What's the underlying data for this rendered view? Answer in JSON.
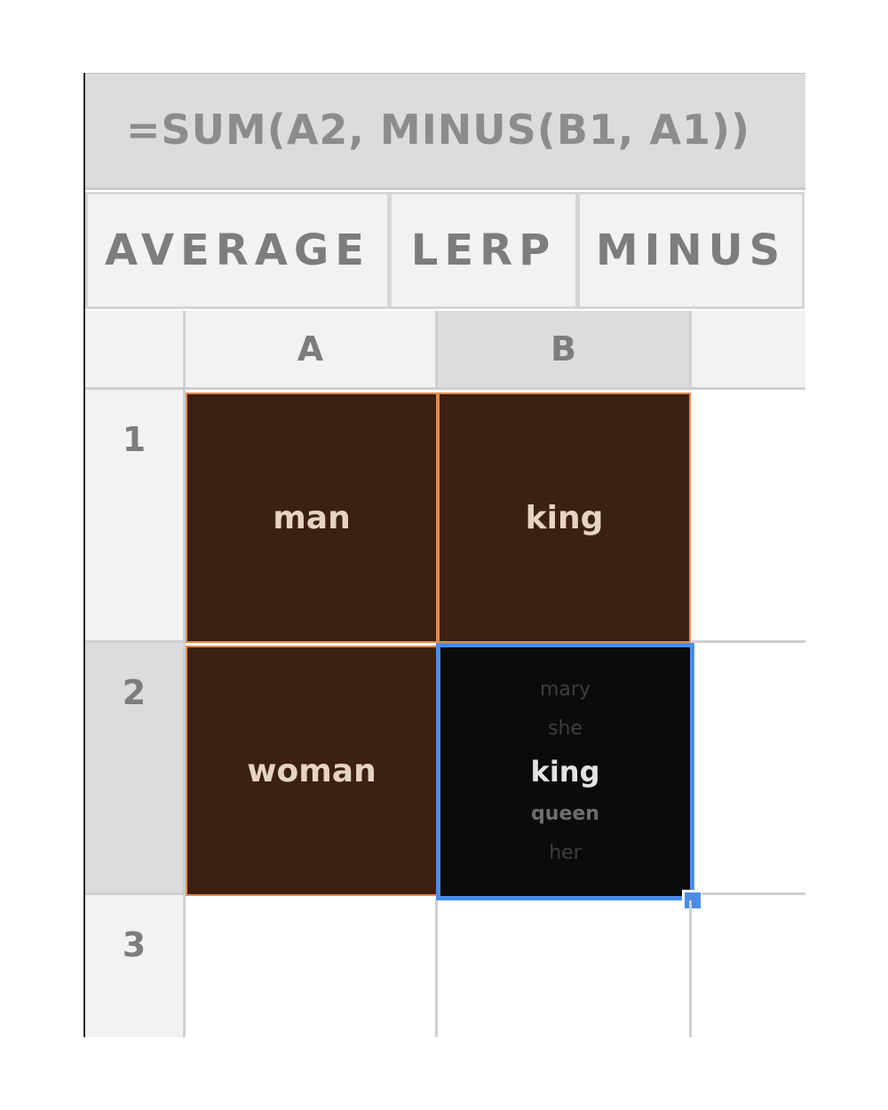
{
  "formula_bar": {
    "formula": "=SUM(A2, MINUS(B1, A1))"
  },
  "functions": [
    "AVERAGE",
    "LERP",
    "MINUS"
  ],
  "columns": [
    "A",
    "B"
  ],
  "rows": [
    "1",
    "2",
    "3"
  ],
  "cells": {
    "A1": "man",
    "B1": "king",
    "A2": "woman"
  },
  "result_cell": {
    "address": "B2",
    "candidates": [
      "mary",
      "she",
      "king",
      "queen",
      "her"
    ]
  },
  "colors": {
    "word_cell_bg": "#3c2010",
    "word_cell_border": "#e48a4e",
    "result_bg": "#0b0b0b",
    "selection_accent": "#4a8ce8"
  }
}
